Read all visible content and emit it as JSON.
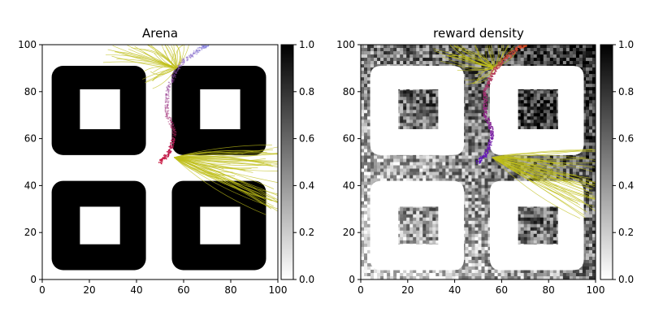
{
  "chart_data": [
    {
      "type": "heatmap",
      "title": "Arena",
      "xlim": [
        0,
        100
      ],
      "ylim": [
        0,
        100
      ],
      "xticks": [
        "0",
        "20",
        "40",
        "60",
        "80",
        "100"
      ],
      "yticks": [
        "0",
        "20",
        "40",
        "60",
        "80",
        "100"
      ],
      "colorbar": {
        "range": [
          0,
          1
        ],
        "ticks": [
          "0.0",
          "0.2",
          "0.4",
          "0.6",
          "0.8",
          "1.0"
        ],
        "colormap": "gray_r"
      },
      "obstacles": [
        {
          "x0": 4,
          "x1": 44,
          "y0": 53,
          "y1": 91,
          "hole_x0": 16,
          "hole_x1": 33,
          "hole_y0": 64,
          "hole_y1": 81
        },
        {
          "x0": 55,
          "x1": 95,
          "y0": 53,
          "y1": 91,
          "hole_x0": 67,
          "hole_x1": 84,
          "hole_y0": 64,
          "hole_y1": 81
        },
        {
          "x0": 4,
          "x1": 44,
          "y0": 4,
          "y1": 42,
          "hole_x0": 16,
          "hole_x1": 33,
          "hole_y0": 15,
          "hole_y1": 31
        },
        {
          "x0": 55,
          "x1": 95,
          "y0": 4,
          "y1": 42,
          "hole_x0": 67,
          "hole_x1": 84,
          "hole_y0": 15,
          "hole_y1": 31
        }
      ],
      "main_path": [
        [
          50,
          50
        ],
        [
          53,
          53
        ],
        [
          55,
          57
        ],
        [
          56,
          62
        ],
        [
          55,
          66
        ],
        [
          53,
          70
        ],
        [
          53,
          75
        ],
        [
          53,
          80
        ],
        [
          55,
          85
        ],
        [
          57,
          89
        ],
        [
          60,
          93
        ],
        [
          64,
          96
        ],
        [
          68,
          99
        ],
        [
          70,
          100
        ]
      ],
      "sampled_trajectory_clusters": [
        {
          "origin": [
            57,
            90
          ],
          "toward": [
            [
              40,
              100
            ],
            [
              50,
              100
            ],
            [
              30,
              95
            ],
            [
              45,
              85
            ],
            [
              60,
              100
            ]
          ]
        },
        {
          "origin": [
            56,
            52
          ],
          "toward": [
            [
              100,
              55
            ],
            [
              100,
              45
            ],
            [
              100,
              35
            ],
            [
              97,
              30
            ],
            [
              90,
              50
            ],
            [
              80,
              45
            ]
          ]
        }
      ],
      "colors": {
        "obstacle": "#000000",
        "trajectories": "#bfbf1a",
        "path_start": "#c8103a",
        "path_end": "#6a6adf"
      }
    },
    {
      "type": "heatmap",
      "title": "reward density",
      "xlim": [
        0,
        100
      ],
      "ylim": [
        0,
        100
      ],
      "xticks": [
        "0",
        "20",
        "40",
        "60",
        "80",
        "100"
      ],
      "yticks": [
        "0",
        "20",
        "40",
        "60",
        "80",
        "100"
      ],
      "colorbar": {
        "range": [
          0,
          1
        ],
        "ticks": [
          "0.0",
          "0.2",
          "0.4",
          "0.6",
          "0.8",
          "1.0"
        ],
        "colormap": "gray_r"
      },
      "density_trend": {
        "low_corner": [
          0,
          0
        ],
        "high_corner": [
          100,
          100
        ],
        "min": 0.1,
        "max": 0.85
      },
      "obstacles_free": true,
      "main_path": [
        [
          50,
          50
        ],
        [
          53,
          53
        ],
        [
          55,
          57
        ],
        [
          56,
          62
        ],
        [
          55,
          66
        ],
        [
          53,
          70
        ],
        [
          53,
          75
        ],
        [
          53,
          80
        ],
        [
          55,
          85
        ],
        [
          57,
          89
        ],
        [
          60,
          93
        ],
        [
          64,
          96
        ],
        [
          68,
          99
        ],
        [
          70,
          100
        ]
      ],
      "sampled_trajectory_clusters": [
        {
          "origin": [
            57,
            90
          ],
          "toward": [
            [
              40,
              100
            ],
            [
              50,
              100
            ],
            [
              35,
              97
            ],
            [
              45,
              88
            ],
            [
              62,
              100
            ]
          ]
        },
        {
          "origin": [
            56,
            52
          ],
          "toward": [
            [
              100,
              52
            ],
            [
              100,
              42
            ],
            [
              100,
              35
            ],
            [
              97,
              30
            ],
            [
              88,
              45
            ],
            [
              78,
              47
            ]
          ]
        }
      ],
      "colors": {
        "trajectories": "#bfbf1a",
        "path_start": "#5a10c8",
        "path_end": "#e05020"
      }
    }
  ]
}
